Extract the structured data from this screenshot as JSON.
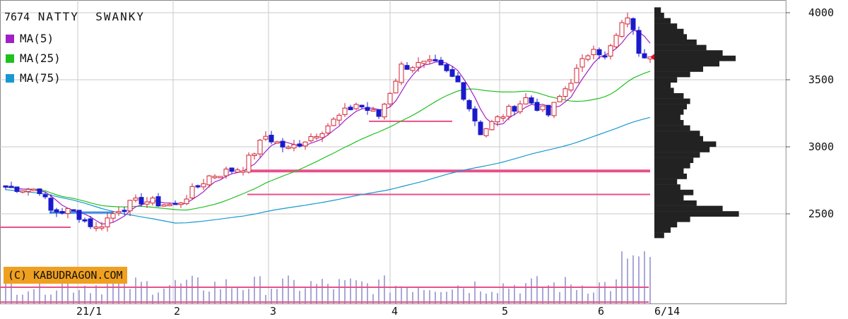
{
  "header": {
    "code": "7674",
    "name": "NATTY  SWANKY"
  },
  "legend": [
    {
      "label": "MA(5)",
      "color": "#a020c8"
    },
    {
      "label": "MA(25)",
      "color": "#20c020"
    },
    {
      "label": "MA(75)",
      "color": "#1898d0"
    }
  ],
  "copyright": "(C) KABUDRAGON.COM",
  "colors": {
    "up": "#d02030",
    "down": "#1a1acc",
    "profile": "#222222",
    "hline": "#e8508a",
    "grid": "#c8c8c8",
    "marker": "#e01030",
    "copyright_bg": "#f0a020"
  },
  "chart_data": {
    "type": "candlestick",
    "y_ticks": [
      "4000",
      "3500",
      "3000",
      "2500"
    ],
    "x_ticks": [
      "21/1",
      "2",
      "3",
      "4",
      "5",
      "6",
      "6/14"
    ],
    "ylim": [
      2190,
      4050
    ],
    "last_close": 3670,
    "support_lines": [
      2820,
      2645,
      3190,
      2400,
      2510
    ],
    "price_path": [
      [
        0,
        2700
      ],
      [
        6,
        2680
      ],
      [
        8,
        2520
      ],
      [
        12,
        2520
      ],
      [
        16,
        2390
      ],
      [
        20,
        2540
      ],
      [
        24,
        2600
      ],
      [
        30,
        2560
      ],
      [
        36,
        2780
      ],
      [
        42,
        2850
      ],
      [
        46,
        3080
      ],
      [
        50,
        2980
      ],
      [
        56,
        3130
      ],
      [
        62,
        3320
      ],
      [
        66,
        3230
      ],
      [
        70,
        3600
      ],
      [
        76,
        3620
      ],
      [
        80,
        3480
      ],
      [
        84,
        3110
      ],
      [
        88,
        3240
      ],
      [
        92,
        3360
      ],
      [
        96,
        3240
      ],
      [
        100,
        3500
      ],
      [
        104,
        3760
      ],
      [
        106,
        3660
      ],
      [
        110,
        3980
      ],
      [
        112,
        3720
      ],
      [
        114,
        3670
      ]
    ],
    "price_profile": [
      [
        2340,
        6
      ],
      [
        2380,
        10
      ],
      [
        2420,
        14
      ],
      [
        2460,
        22
      ],
      [
        2500,
        52
      ],
      [
        2540,
        42
      ],
      [
        2580,
        26
      ],
      [
        2620,
        18
      ],
      [
        2660,
        24
      ],
      [
        2700,
        16
      ],
      [
        2740,
        14
      ],
      [
        2780,
        20
      ],
      [
        2820,
        18
      ],
      [
        2860,
        22
      ],
      [
        2900,
        24
      ],
      [
        2940,
        28
      ],
      [
        2980,
        34
      ],
      [
        3020,
        38
      ],
      [
        3060,
        30
      ],
      [
        3100,
        28
      ],
      [
        3140,
        22
      ],
      [
        3180,
        18
      ],
      [
        3220,
        16
      ],
      [
        3260,
        18
      ],
      [
        3300,
        20
      ],
      [
        3340,
        22
      ],
      [
        3380,
        18
      ],
      [
        3420,
        12
      ],
      [
        3460,
        10
      ],
      [
        3500,
        14
      ],
      [
        3540,
        22
      ],
      [
        3580,
        30
      ],
      [
        3620,
        40
      ],
      [
        3660,
        50
      ],
      [
        3700,
        42
      ],
      [
        3740,
        32
      ],
      [
        3780,
        26
      ],
      [
        3820,
        20
      ],
      [
        3860,
        18
      ],
      [
        3900,
        14
      ],
      [
        3940,
        10
      ],
      [
        3980,
        6
      ],
      [
        4020,
        4
      ]
    ]
  }
}
